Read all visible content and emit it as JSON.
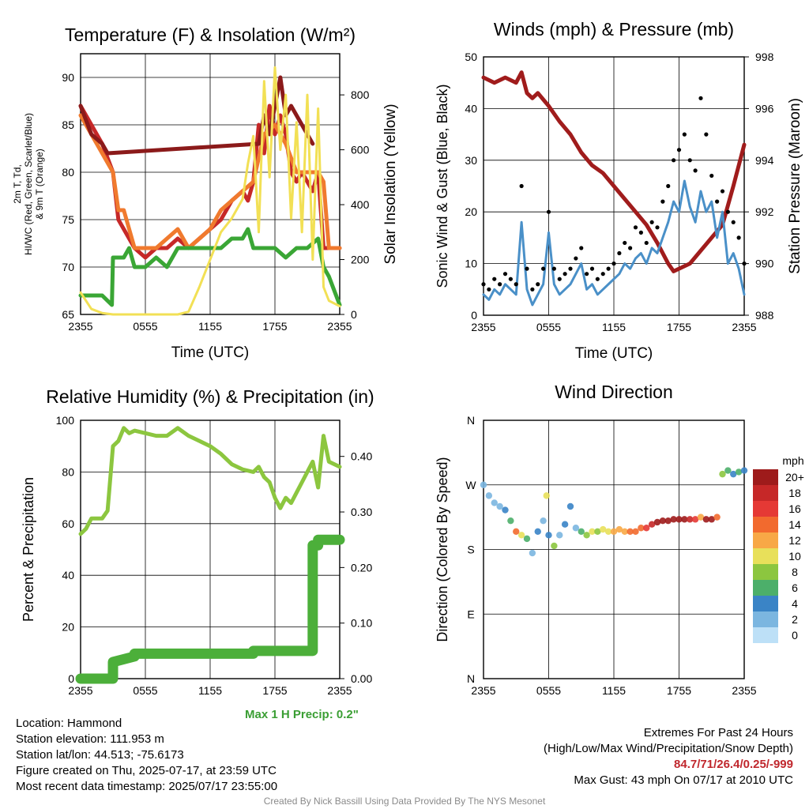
{
  "chart_data": [
    {
      "type": "line",
      "title": "Temperature (F) & Insolation (W/m²)",
      "xlabel": "Time (UTC)",
      "ylabel": "2m T, Td, HI/WC (Red, Green, Scarlet/Blue) & 9m T (Orange)",
      "y2label": "Solar Insolation (Yellow)",
      "x_ticks": [
        "2355",
        "0555",
        "1155",
        "1755",
        "2355"
      ],
      "ylim": [
        65,
        92.5
      ],
      "y_ticks": [
        65,
        70,
        75,
        80,
        85,
        90
      ],
      "y2lim": [
        0,
        950
      ],
      "y2_ticks": [
        0,
        200,
        400,
        600,
        800
      ],
      "series": [
        {
          "name": "2m T",
          "color": "#c62828",
          "x": [
            0,
            1,
            2,
            3,
            3.5,
            4,
            5,
            6,
            7,
            8,
            9,
            10,
            11,
            12,
            13,
            14,
            15,
            15.5,
            16,
            16.5,
            17,
            17.5,
            18,
            18.5,
            19,
            19.5,
            20,
            20.5,
            21,
            21.5,
            22,
            22.5,
            23,
            24
          ],
          "y": [
            87,
            85,
            83,
            80,
            75,
            74,
            72,
            71,
            72,
            72,
            73,
            72,
            73,
            74,
            75,
            77,
            78,
            77,
            79,
            85,
            82,
            87,
            84,
            86,
            84,
            80,
            79,
            80,
            79,
            78,
            80,
            72,
            72,
            72
          ]
        },
        {
          "name": "9m T",
          "color": "#f07a2e",
          "x": [
            0,
            1,
            2,
            3,
            3.5,
            4,
            5,
            6,
            7,
            8,
            9,
            10,
            11,
            12,
            13,
            14,
            15,
            16,
            17,
            18,
            19,
            20,
            21,
            22,
            22.5,
            23,
            24
          ],
          "y": [
            86,
            84,
            82,
            80,
            76,
            76,
            72,
            72,
            72,
            73,
            74,
            72,
            73,
            74,
            76,
            77,
            78,
            79,
            84,
            85,
            83,
            80,
            80,
            80,
            79,
            72,
            72
          ]
        },
        {
          "name": "HI/WC",
          "color": "#8b1a1a",
          "x": [
            0,
            1,
            2,
            2.5,
            16.5,
            17,
            17.5,
            18,
            18.5,
            19,
            19.5,
            20,
            21,
            21.5
          ],
          "y": [
            87,
            84,
            83,
            82,
            83,
            86,
            84,
            87,
            90,
            86,
            87,
            86,
            84,
            83
          ]
        },
        {
          "name": "Td",
          "color": "#3aa635",
          "x": [
            0,
            1,
            2,
            2.9,
            3,
            4,
            4.5,
            5,
            6,
            7,
            8,
            9,
            10,
            11,
            12,
            13,
            14,
            15,
            15.5,
            16,
            17,
            18,
            19,
            20,
            21,
            22,
            22.5,
            23,
            24
          ],
          "y": [
            67,
            67,
            67,
            66,
            71,
            71,
            72,
            70,
            70,
            71,
            70,
            72,
            72,
            72,
            72,
            72,
            73,
            73,
            74,
            72,
            72,
            72,
            71,
            72,
            72,
            73,
            70,
            69,
            66
          ]
        },
        {
          "name": "Solar",
          "color": "#f2e055",
          "axis": "y2",
          "x": [
            0,
            1,
            2,
            3,
            4,
            5,
            6,
            7,
            8,
            9,
            10,
            11,
            12,
            13,
            14,
            15,
            15.5,
            16,
            16.5,
            17,
            17.5,
            18,
            18.5,
            19,
            19.5,
            20,
            20.5,
            21,
            21.5,
            22,
            22.5,
            23,
            24
          ],
          "y": [
            80,
            20,
            5,
            0,
            0,
            0,
            0,
            0,
            0,
            0,
            10,
            100,
            200,
            300,
            350,
            420,
            550,
            650,
            300,
            850,
            500,
            900,
            600,
            800,
            350,
            700,
            300,
            800,
            200,
            750,
            100,
            50,
            30
          ]
        }
      ]
    },
    {
      "type": "line",
      "title": "Winds (mph) & Pressure (mb)",
      "xlabel": "Time (UTC)",
      "ylabel": "Sonic Wind & Gust (Blue, Black)",
      "y2label": "Station Pressure (Maroon)",
      "x_ticks": [
        "2355",
        "0555",
        "1155",
        "1755",
        "2355"
      ],
      "ylim": [
        0,
        50
      ],
      "y_ticks": [
        0,
        10,
        20,
        30,
        40,
        50
      ],
      "y2lim": [
        988,
        998
      ],
      "y2_ticks": [
        988,
        990,
        992,
        994,
        996,
        998
      ],
      "series": [
        {
          "name": "Pressure",
          "color": "#a01c1c",
          "axis": "y2",
          "x": [
            0,
            1,
            2,
            3,
            3.5,
            4,
            4.5,
            5,
            6,
            7,
            8,
            9,
            10,
            11,
            12,
            13,
            14,
            15,
            16,
            17,
            17.5,
            18,
            19,
            20,
            21,
            22,
            23,
            24
          ],
          "y": [
            997.2,
            997.0,
            997.2,
            997.0,
            997.4,
            996.6,
            996.4,
            996.6,
            996.1,
            995.5,
            995.0,
            994.3,
            993.8,
            993.5,
            993.0,
            992.5,
            992.0,
            991.5,
            990.8,
            990.0,
            989.7,
            989.8,
            990.0,
            990.5,
            991.0,
            991.5,
            993.0,
            994.6
          ]
        },
        {
          "name": "Sonic Wind",
          "color": "#4a90c8",
          "x": [
            0,
            0.5,
            1,
            1.5,
            2,
            2.5,
            3,
            3.5,
            4,
            4.5,
            5,
            5.5,
            6,
            6.5,
            7,
            7.5,
            8,
            8.5,
            9,
            9.5,
            10,
            10.5,
            11,
            11.5,
            12,
            12.5,
            13,
            13.5,
            14,
            14.5,
            15,
            15.5,
            16,
            16.5,
            17,
            17.5,
            18,
            18.5,
            19,
            19.5,
            20,
            20.5,
            21,
            21.5,
            22,
            22.5,
            23,
            23.5,
            24
          ],
          "y": [
            4,
            3,
            5,
            4,
            6,
            5,
            4,
            18,
            5,
            2,
            4,
            6,
            16,
            6,
            4,
            5,
            6,
            8,
            10,
            5,
            6,
            4,
            5,
            6,
            7,
            8,
            10,
            9,
            11,
            12,
            10,
            13,
            12,
            15,
            18,
            22,
            20,
            26,
            21,
            18,
            24,
            20,
            22,
            15,
            20,
            10,
            12,
            9,
            4
          ]
        },
        {
          "name": "Gust",
          "color": "#000000",
          "x": [
            0,
            0.5,
            1,
            1.5,
            2,
            2.5,
            3,
            3.5,
            4,
            4.5,
            5,
            5.5,
            6,
            6.5,
            7,
            7.5,
            8,
            8.5,
            9,
            9.5,
            10,
            10.5,
            11,
            11.5,
            12,
            12.5,
            13,
            13.5,
            14,
            14.5,
            15,
            15.5,
            16,
            16.5,
            17,
            17.5,
            18,
            18.5,
            19,
            19.5,
            20,
            20.5,
            21,
            21.5,
            22,
            22.5,
            23,
            23.5,
            24
          ],
          "y": [
            6,
            5,
            7,
            6,
            8,
            7,
            6,
            25,
            9,
            5,
            6,
            9,
            20,
            9,
            7,
            8,
            9,
            11,
            13,
            8,
            9,
            7,
            8,
            9,
            10,
            12,
            14,
            13,
            17,
            16,
            14,
            18,
            17,
            22,
            25,
            30,
            32,
            35,
            30,
            28,
            42,
            35,
            27,
            22,
            24,
            20,
            18,
            15,
            10
          ]
        }
      ]
    },
    {
      "type": "line",
      "title": "Relative Humidity (%) & Precipitation (in)",
      "xlabel": "",
      "ylabel": "Percent & Precipitation",
      "x_ticks": [
        "2355",
        "0555",
        "1155",
        "1755",
        "2355"
      ],
      "ylim": [
        0,
        100
      ],
      "y_ticks": [
        0,
        20,
        40,
        60,
        80,
        100
      ],
      "y2lim": [
        0,
        0.465
      ],
      "y2_ticks": [
        "0.00",
        "0.10",
        "0.20",
        "0.30",
        "0.40"
      ],
      "annotation": "Max 1 H Precip: 0.2\"",
      "series": [
        {
          "name": "RH",
          "color": "#8cc63f",
          "x": [
            0,
            0.5,
            1,
            1.5,
            2,
            2.5,
            3,
            3.5,
            4,
            4.5,
            5,
            6,
            7,
            8,
            9,
            10,
            11,
            12,
            13,
            14,
            15,
            16,
            16.5,
            17,
            17.5,
            18,
            18.5,
            19,
            19.5,
            20,
            20.5,
            21,
            21.5,
            22,
            22.5,
            23,
            23.5,
            24
          ],
          "y": [
            56,
            58,
            62,
            62,
            62,
            65,
            90,
            92,
            97,
            95,
            96,
            95,
            94,
            94,
            97,
            94,
            92,
            90,
            87,
            83,
            81,
            80,
            82,
            78,
            76,
            70,
            66,
            70,
            68,
            72,
            76,
            80,
            84,
            74,
            94,
            84,
            83,
            82
          ]
        },
        {
          "name": "Precip",
          "color": "#4caf3a",
          "axis": "y2",
          "x": [
            0,
            3,
            3,
            5,
            5,
            16,
            16,
            21.5,
            21.5,
            22,
            22,
            24
          ],
          "y": [
            0,
            0,
            0.03,
            0.04,
            0.045,
            0.045,
            0.05,
            0.05,
            0.24,
            0.24,
            0.25,
            0.25
          ]
        }
      ]
    },
    {
      "type": "scatter",
      "title": "Wind Direction",
      "ylabel": "Direction (Colored By Speed)",
      "x_ticks": [
        "2355",
        "0555",
        "1155",
        "1755",
        "2355"
      ],
      "y_ticks": [
        "N",
        "E",
        "S",
        "W",
        "N"
      ],
      "legend_title": "mph",
      "legend_labels": [
        "20+",
        "18",
        "16",
        "14",
        "12",
        "10",
        "8",
        "6",
        "4",
        "2",
        "0"
      ],
      "legend_colors": [
        "#9e1b1b",
        "#c62828",
        "#e53935",
        "#f26a2e",
        "#f8a846",
        "#e8e05a",
        "#8cc63f",
        "#4caf6a",
        "#3a84c6",
        "#7bb6e0",
        "#bde0f7"
      ],
      "direction_deg": [
        [
          0,
          270,
          2
        ],
        [
          0.5,
          255,
          2
        ],
        [
          1,
          245,
          3
        ],
        [
          1.5,
          240,
          3
        ],
        [
          2,
          235,
          4
        ],
        [
          2.5,
          220,
          6
        ],
        [
          3,
          205,
          14
        ],
        [
          3.5,
          200,
          10
        ],
        [
          4,
          195,
          6
        ],
        [
          4.5,
          175,
          3
        ],
        [
          5,
          205,
          4
        ],
        [
          5.5,
          220,
          3
        ],
        [
          5.8,
          255,
          10
        ],
        [
          6,
          200,
          4
        ],
        [
          6.5,
          185,
          8
        ],
        [
          7,
          200,
          2
        ],
        [
          7.5,
          215,
          4
        ],
        [
          8,
          240,
          4
        ],
        [
          8.5,
          210,
          3
        ],
        [
          9,
          205,
          6
        ],
        [
          9.5,
          200,
          8
        ],
        [
          10,
          205,
          10
        ],
        [
          10.5,
          205,
          9
        ],
        [
          11,
          208,
          10
        ],
        [
          11.5,
          205,
          11
        ],
        [
          12,
          205,
          12
        ],
        [
          12.5,
          208,
          12
        ],
        [
          13,
          205,
          13
        ],
        [
          13.5,
          205,
          14
        ],
        [
          14,
          205,
          14
        ],
        [
          14.5,
          210,
          15
        ],
        [
          15,
          210,
          16
        ],
        [
          15.5,
          215,
          18
        ],
        [
          16,
          218,
          20
        ],
        [
          16.5,
          220,
          20
        ],
        [
          17,
          220,
          21
        ],
        [
          17.5,
          222,
          20
        ],
        [
          18,
          222,
          20
        ],
        [
          18.5,
          222,
          20
        ],
        [
          19,
          222,
          18
        ],
        [
          19.5,
          222,
          16
        ],
        [
          20,
          225,
          12
        ],
        [
          20.5,
          222,
          20
        ],
        [
          21,
          222,
          20
        ],
        [
          21.5,
          225,
          14
        ],
        [
          22,
          285,
          8
        ],
        [
          22.5,
          290,
          6
        ],
        [
          23,
          285,
          4
        ],
        [
          23.5,
          288,
          6
        ],
        [
          24,
          290,
          4
        ]
      ]
    }
  ],
  "info": {
    "location": "Location: Hammond",
    "elevation": "Station elevation: 111.953 m",
    "latlon": "Station lat/lon: 44.513; -75.6173",
    "created": "Figure created on Thu, 2025-07-17, at 23:59 UTC",
    "recent": "Most recent data timestamp: 2025/07/17 23:55:00"
  },
  "extremes": {
    "title": "Extremes For Past 24 Hours",
    "subtitle": "(High/Low/Max Wind/Precipitation/Snow Depth)",
    "values": "84.7/71/26.4/0.25/-999",
    "gust": "Max Gust: 43 mph On 07/17 at 2010 UTC"
  },
  "credit": "Created By Nick Bassill Using Data Provided By The NYS Mesonet"
}
